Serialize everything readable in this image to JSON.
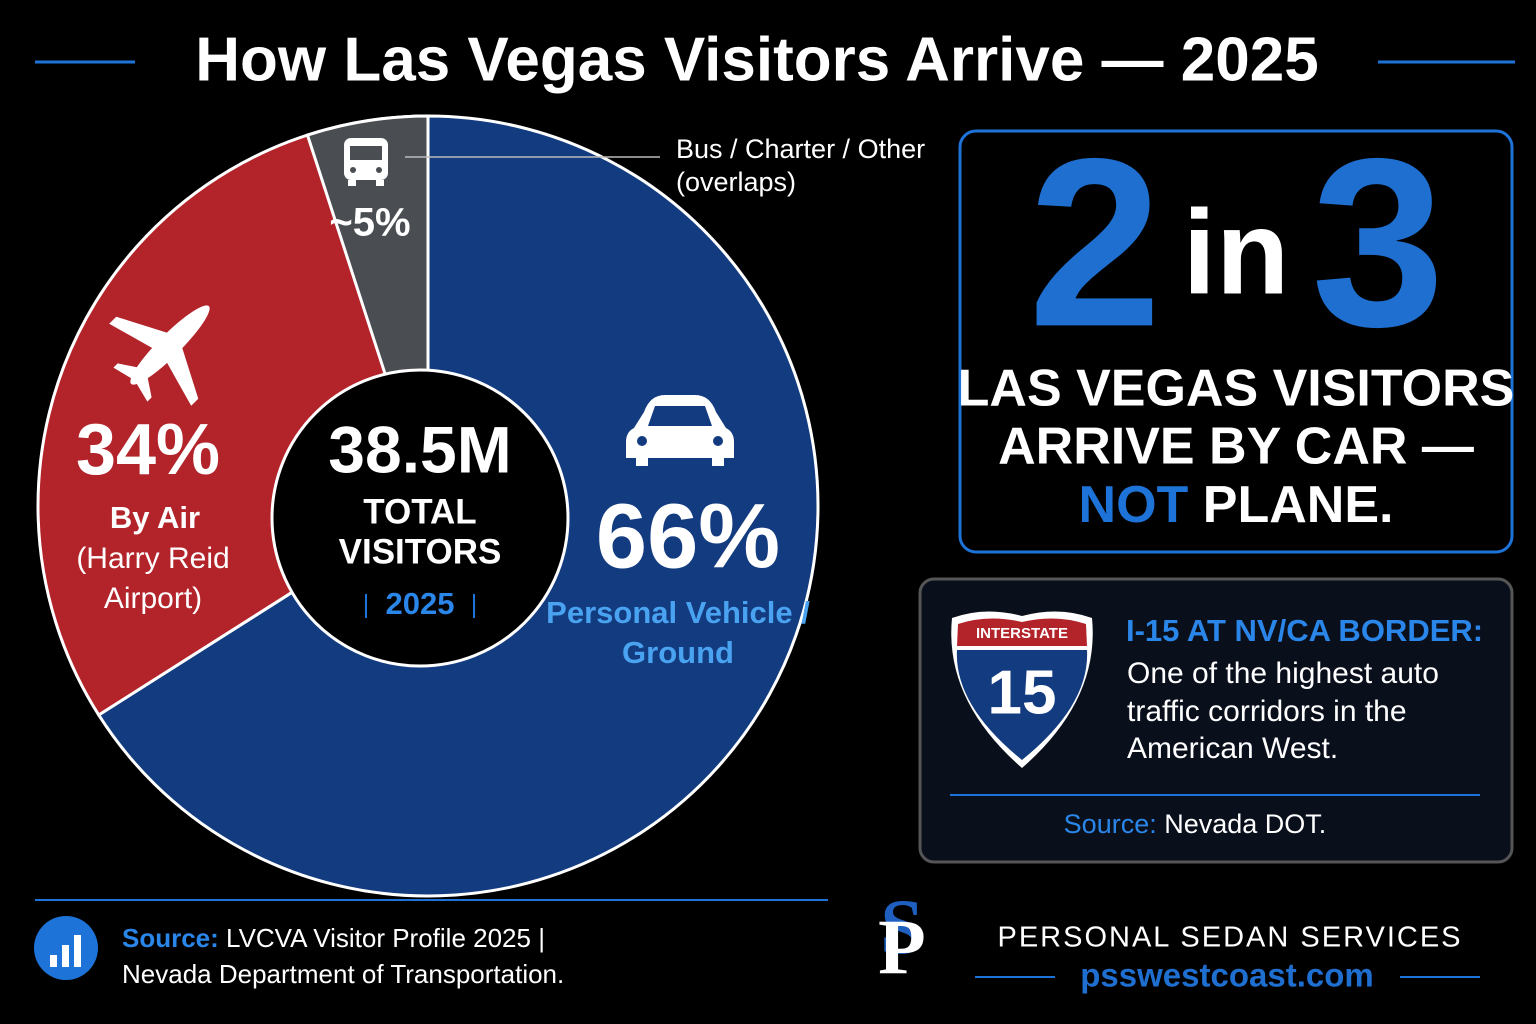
{
  "chart_data": {
    "type": "pie",
    "title": "How Las Vegas Visitors Arrive — 2025",
    "categories": [
      "Personal Vehicle /",
      "By Air",
      "Bus / Charter / Other"
    ],
    "category_sublabels": [
      [
        "Ground"
      ],
      [
        "(Harry Reid",
        "Airport)"
      ],
      [
        "(overlaps)"
      ]
    ],
    "values": [
      66,
      34,
      5
    ],
    "value_labels": [
      "66%",
      "34%",
      "~5%"
    ],
    "colors": [
      "#133b80",
      "#b3232a",
      "#4a4d52"
    ],
    "center_value": "38.5M",
    "center_lines": [
      "TOTAL",
      "VISITORS"
    ],
    "center_year": "2025"
  },
  "callout": {
    "big_left": "2",
    "middle": "in",
    "big_right": "3",
    "line1": "LAS VEGAS VISITORS",
    "line2": "ARRIVE BY CAR —",
    "emphasis": "NOT",
    "line3_rest": " PLANE."
  },
  "highway": {
    "shield_top": "INTERSTATE",
    "shield_number": "15",
    "heading": "I-15 AT NV/CA BORDER:",
    "body": [
      "One of the highest auto",
      "traffic corridors in the",
      "American West."
    ],
    "source_label": "Source:",
    "source": " Nevada DOT."
  },
  "footer": {
    "source_label": "Source:",
    "source_line1": " LVCVA Visitor Profile 2025  |",
    "source_line2": "Nevada Department of Transportation."
  },
  "brand": {
    "name": "PERSONAL SEDAN SERVICES",
    "url": "psswestcoast.com"
  }
}
